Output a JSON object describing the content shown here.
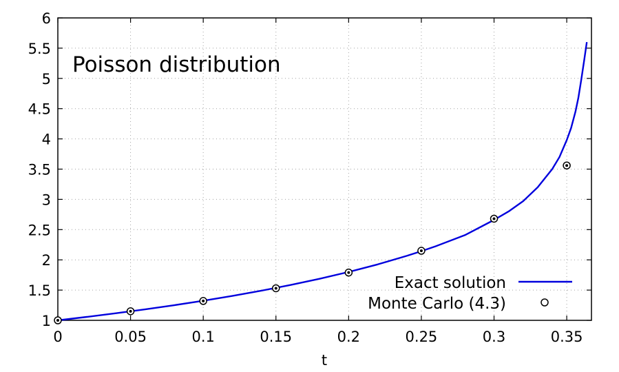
{
  "chart_data": {
    "type": "line",
    "title": "",
    "annotation": "Poisson distribution",
    "xlabel": "t",
    "ylabel": "",
    "xlim": [
      0,
      0.367
    ],
    "ylim": [
      1,
      6
    ],
    "xticks": [
      0,
      0.05,
      0.1,
      0.15,
      0.2,
      0.25,
      0.3,
      0.35
    ],
    "xtick_labels": [
      "0",
      "0.05",
      "0.1",
      "0.15",
      "0.2",
      "0.25",
      "0.3",
      "0.35"
    ],
    "yticks": [
      1,
      1.5,
      2,
      2.5,
      3,
      3.5,
      4,
      4.5,
      5,
      5.5,
      6
    ],
    "ytick_labels": [
      "1",
      "1.5",
      "2",
      "2.5",
      "3",
      "3.5",
      "4",
      "4.5",
      "5",
      "5.5",
      "6"
    ],
    "grid": true,
    "legend_position": "bottom-right",
    "series": [
      {
        "name": "Exact solution",
        "kind": "line",
        "color": "#0000dd",
        "x": [
          0,
          0.02,
          0.04,
          0.06,
          0.08,
          0.1,
          0.12,
          0.14,
          0.16,
          0.18,
          0.2,
          0.22,
          0.24,
          0.25,
          0.26,
          0.28,
          0.3,
          0.31,
          0.32,
          0.33,
          0.34,
          0.345,
          0.35,
          0.353,
          0.356,
          0.358,
          0.36,
          0.362,
          0.3638
        ],
        "y": [
          1,
          1.057,
          1.117,
          1.181,
          1.25,
          1.324,
          1.404,
          1.49,
          1.584,
          1.687,
          1.8,
          1.925,
          2.066,
          2.143,
          2.226,
          2.409,
          2.66,
          2.8,
          2.97,
          3.2,
          3.5,
          3.7,
          3.98,
          4.18,
          4.45,
          4.68,
          4.98,
          5.3,
          5.6
        ]
      },
      {
        "name": "Monte Carlo (4.3)",
        "kind": "scatter",
        "color": "#000000",
        "x": [
          0,
          0.05,
          0.1,
          0.15,
          0.2,
          0.25,
          0.3,
          0.35
        ],
        "y": [
          1.0,
          1.15,
          1.32,
          1.53,
          1.79,
          2.15,
          2.68,
          3.56
        ]
      }
    ]
  }
}
